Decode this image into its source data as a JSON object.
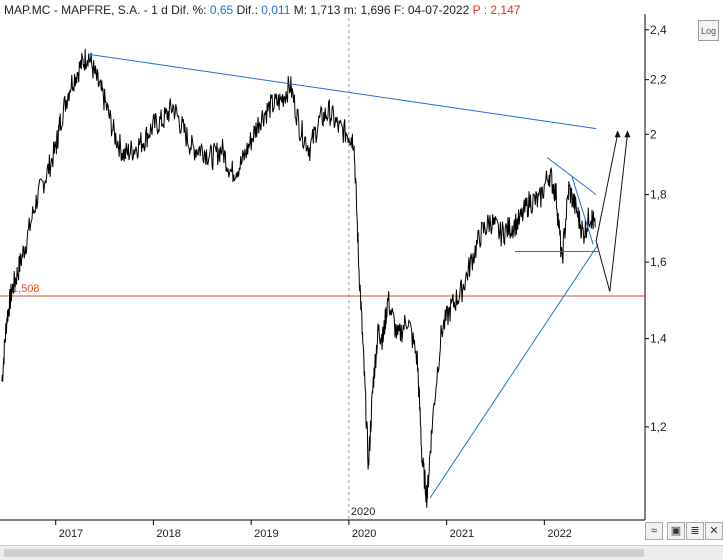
{
  "header": {
    "symbol": "MAP.MC - MAPFRE, S.A. -",
    "period": "1 d",
    "dif_pct_label": "Dif. %:",
    "dif_pct_value": "0,65",
    "dif_label": "Dif.:",
    "dif_value": "0,011",
    "max_label": "M:",
    "max_value": "1,713",
    "min_label": "m:",
    "min_value": "1,696",
    "date_label": "F:",
    "date_value": "04-07-2022",
    "price_label": "P :",
    "price_value": "2,147"
  },
  "toolbar": {
    "log_label": "Log"
  },
  "colors": {
    "price": "#000000",
    "trendline": "#1f6fd6",
    "support": "#e0501a",
    "grid": "#d9d9d9"
  },
  "chart_data": {
    "type": "line",
    "title": "",
    "xlabel": "",
    "ylabel": "",
    "yscale": "log",
    "ylim": [
      1.02,
      2.45
    ],
    "y_ticks": [
      "2,4",
      "2,2",
      "2",
      "1,8",
      "1,6",
      "1,4",
      "1,2"
    ],
    "y_tick_values": [
      2.4,
      2.2,
      2.0,
      1.8,
      1.6,
      1.4,
      1.2
    ],
    "x_ticks": [
      "2017",
      "2018",
      "2019",
      "2020",
      "2021",
      "2022"
    ],
    "x_tick_values": [
      2017.0,
      2018.0,
      2019.0,
      2020.0,
      2021.0,
      2022.0
    ],
    "xlim": [
      2016.43,
      2023.03
    ],
    "marker_label": "2020",
    "grid": false,
    "support_line": {
      "label": "1,508",
      "value": 1.508
    },
    "series": [
      {
        "x": [
          2016.45,
          2016.5,
          2016.55,
          2016.62,
          2016.7,
          2016.8,
          2016.9,
          2017.0,
          2017.05,
          2017.15,
          2017.25,
          2017.33,
          2017.42,
          2017.5,
          2017.6,
          2017.7,
          2017.8,
          2017.9,
          2018.0,
          2018.1,
          2018.2,
          2018.3,
          2018.4,
          2018.5,
          2018.6,
          2018.7,
          2018.8,
          2018.9,
          2019.0,
          2019.1,
          2019.2,
          2019.3,
          2019.4,
          2019.5,
          2019.6,
          2019.7,
          2019.8,
          2019.9,
          2020.0,
          2020.05,
          2020.1,
          2020.15,
          2020.2,
          2020.25,
          2020.3,
          2020.35,
          2020.4,
          2020.5,
          2020.6,
          2020.7,
          2020.75,
          2020.8,
          2020.85,
          2020.95,
          2021.05,
          2021.15,
          2021.25,
          2021.35,
          2021.45,
          2021.55,
          2021.65,
          2021.75,
          2021.85,
          2021.95,
          2022.05,
          2022.12,
          2022.18,
          2022.25,
          2022.33,
          2022.4,
          2022.47,
          2022.52
        ],
        "values": [
          1.3,
          1.45,
          1.52,
          1.58,
          1.66,
          1.78,
          1.86,
          1.95,
          2.05,
          2.18,
          2.25,
          2.3,
          2.2,
          2.12,
          2.0,
          1.93,
          1.95,
          1.98,
          2.03,
          2.05,
          2.1,
          2.02,
          1.95,
          1.95,
          1.92,
          1.95,
          1.87,
          1.9,
          1.98,
          2.06,
          2.1,
          2.12,
          2.18,
          2.02,
          1.95,
          2.05,
          2.08,
          2.02,
          2.0,
          1.98,
          1.6,
          1.35,
          1.12,
          1.3,
          1.42,
          1.4,
          1.5,
          1.4,
          1.45,
          1.35,
          1.13,
          1.06,
          1.2,
          1.42,
          1.48,
          1.52,
          1.6,
          1.68,
          1.72,
          1.68,
          1.7,
          1.72,
          1.78,
          1.78,
          1.87,
          1.8,
          1.6,
          1.82,
          1.75,
          1.68,
          1.74,
          1.7
        ]
      }
    ],
    "annotations": [
      {
        "kind": "resistance",
        "x": [
          2017.33,
          2022.53
        ],
        "y": [
          2.3,
          2.02
        ]
      },
      {
        "kind": "triangle-upper",
        "x": [
          2022.03,
          2022.53
        ],
        "y": [
          1.92,
          1.8
        ]
      },
      {
        "kind": "triangle-upper-2",
        "x": [
          2022.28,
          2022.5
        ],
        "y": [
          1.86,
          1.65
        ]
      },
      {
        "kind": "triangle-base",
        "x": [
          2021.7,
          2022.55
        ],
        "y": [
          1.63,
          1.63
        ]
      },
      {
        "kind": "uptrend",
        "x": [
          2020.83,
          2022.55
        ],
        "y": [
          1.06,
          1.65
        ]
      },
      {
        "kind": "projection-up",
        "x": [
          2022.53,
          2022.75
        ],
        "y": [
          1.66,
          2.0
        ]
      },
      {
        "kind": "projection-dip",
        "x": [
          2022.53,
          2022.67,
          2022.85
        ],
        "y": [
          1.66,
          1.52,
          2.0
        ]
      }
    ]
  }
}
